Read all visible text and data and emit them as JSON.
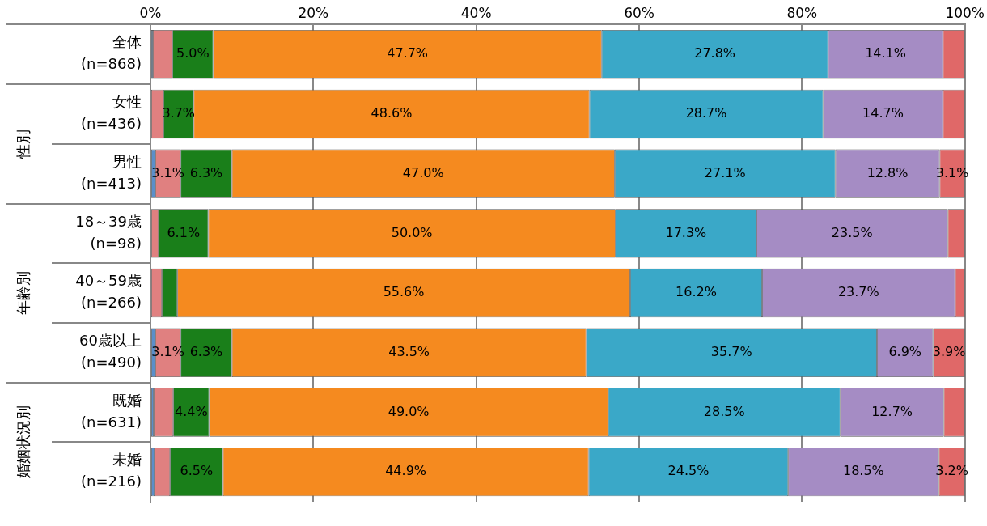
{
  "chart_data": {
    "type": "bar",
    "orientation": "horizontal",
    "stacked": true,
    "categories": [
      "全体\n(n=868)",
      "女性\n(n=436)",
      "男性\n(n=413)",
      "18～39歳\n(n=98)",
      "40～59歳\n(n=266)",
      "60歳以上\n(n=490)",
      "既婚\n(n=631)",
      "未婚\n(n=216)"
    ],
    "series": [
      {
        "color": "#5b8fc9",
        "values": [
          0.3,
          0,
          0.6,
          0,
          0,
          0.6,
          0.4,
          0.5
        ],
        "value_labels": [
          null,
          null,
          null,
          null,
          null,
          null,
          null,
          null
        ]
      },
      {
        "color": "#e08080",
        "values": [
          2.4,
          1.6,
          3.1,
          1.0,
          1.4,
          3.1,
          2.4,
          1.9
        ],
        "value_labels": [
          null,
          null,
          "3.1%",
          null,
          null,
          "3.1%",
          null,
          null
        ]
      },
      {
        "color": "#1a7f1a",
        "values": [
          5.0,
          3.7,
          6.3,
          6.1,
          1.9,
          6.3,
          4.4,
          6.5
        ],
        "value_labels": [
          "5.0%",
          "3.7%",
          "6.3%",
          "6.1%",
          null,
          "6.3%",
          "4.4%",
          "6.5%"
        ]
      },
      {
        "color": "#f58a1f",
        "values": [
          47.7,
          48.6,
          47.0,
          50.0,
          55.6,
          43.5,
          49.0,
          44.9
        ],
        "value_labels": [
          "47.7%",
          "48.6%",
          "47.0%",
          "50.0%",
          "55.6%",
          "43.5%",
          "49.0%",
          "44.9%"
        ]
      },
      {
        "color": "#3aa8c8",
        "values": [
          27.8,
          28.7,
          27.1,
          17.3,
          16.2,
          35.7,
          28.5,
          24.5
        ],
        "value_labels": [
          "27.8%",
          "28.7%",
          "27.1%",
          "17.3%",
          "16.2%",
          "35.7%",
          "28.5%",
          "24.5%"
        ]
      },
      {
        "color": "#a58cc4",
        "values": [
          14.1,
          14.7,
          12.8,
          23.5,
          23.7,
          6.9,
          12.7,
          18.5
        ],
        "value_labels": [
          "14.1%",
          "14.7%",
          "12.8%",
          "23.5%",
          "23.7%",
          "6.9%",
          "12.7%",
          "18.5%"
        ]
      },
      {
        "color": "#e06868",
        "values": [
          2.7,
          2.7,
          3.1,
          2.1,
          1.2,
          3.9,
          2.6,
          3.2
        ],
        "value_labels": [
          null,
          null,
          "3.1%",
          null,
          null,
          "3.9%",
          null,
          "3.2%"
        ]
      }
    ],
    "xlim": [
      0,
      100
    ],
    "xticks": [
      {
        "value": 0,
        "label": "0%"
      },
      {
        "value": 20,
        "label": "20%"
      },
      {
        "value": 40,
        "label": "40%"
      },
      {
        "value": 60,
        "label": "60%"
      },
      {
        "value": 80,
        "label": "80%"
      },
      {
        "value": 100,
        "label": "100%"
      }
    ],
    "grid": "x",
    "legend": false,
    "annotations": [
      "性別",
      "年齢別",
      "婚姻状況別"
    ]
  }
}
